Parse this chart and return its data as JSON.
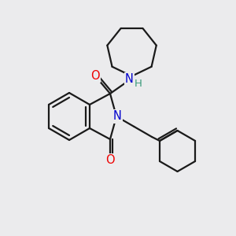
{
  "bg_color": "#ebebed",
  "bond_color": "#1a1a1a",
  "line_width": 1.6,
  "atom_colors": {
    "O": "#ee0000",
    "N": "#0000cc",
    "H": "#3a9a7a",
    "C": "#1a1a1a"
  },
  "font_size_atom": 10.5,
  "font_size_H": 9.5,
  "fig_size": [
    3.0,
    3.0
  ],
  "dpi": 100
}
